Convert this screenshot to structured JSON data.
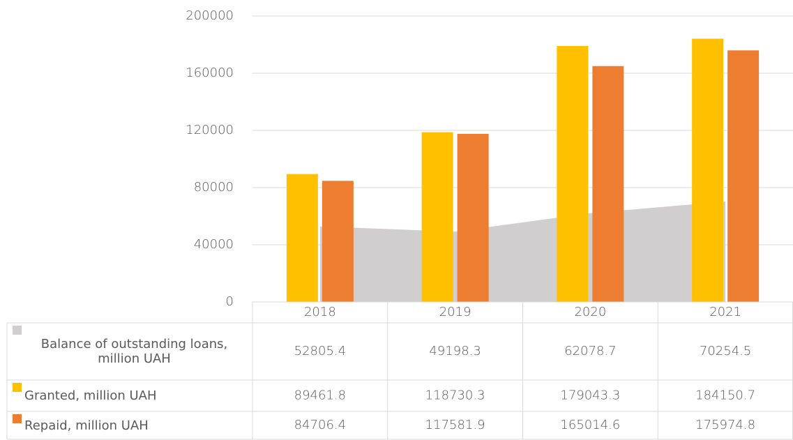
{
  "chart_data": {
    "type": "bar",
    "categories": [
      "2018",
      "2019",
      "2020",
      "2021"
    ],
    "series": [
      {
        "name": "Balance of outstanding loans, million UAH",
        "color": "#d0cece",
        "type": "area",
        "values": [
          52805.4,
          49198.3,
          62078.7,
          70254.5
        ]
      },
      {
        "name": "Granted, million UAH",
        "color": "#ffc000",
        "type": "bar",
        "values": [
          89461.8,
          118730.3,
          179043.3,
          184150.7
        ]
      },
      {
        "name": "Repaid, million UAH",
        "color": "#ed7d31",
        "type": "bar",
        "values": [
          84706.4,
          117581.9,
          165014.6,
          175974.8
        ]
      }
    ],
    "ylim": [
      0,
      200000
    ],
    "yticks": [
      0,
      40000,
      80000,
      120000,
      160000,
      200000
    ],
    "grid": true,
    "data_table": true
  }
}
